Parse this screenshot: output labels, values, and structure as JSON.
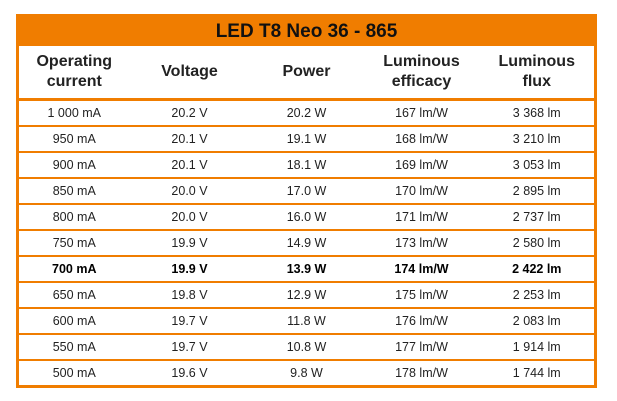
{
  "table": {
    "title": "LED T8 Neo 36 - 865",
    "header": [
      "Operating current",
      "Voltage",
      "Power",
      "Luminous efficacy",
      "Luminous flux"
    ],
    "rows": [
      [
        "1 000 mA",
        "20.2 V",
        "20.2 W",
        "167 lm/W",
        "3 368 lm"
      ],
      [
        "950 mA",
        "20.1 V",
        "19.1 W",
        "168 lm/W",
        "3 210 lm"
      ],
      [
        "900 mA",
        "20.1 V",
        "18.1 W",
        "169 lm/W",
        "3 053 lm"
      ],
      [
        "850 mA",
        "20.0 V",
        "17.0 W",
        "170 lm/W",
        "2 895 lm"
      ],
      [
        "800 mA",
        "20.0 V",
        "16.0 W",
        "171 lm/W",
        "2 737 lm"
      ],
      [
        "750 mA",
        "19.9 V",
        "14.9 W",
        "173 lm/W",
        "2 580 lm"
      ],
      [
        "700 mA",
        "19.9 V",
        "13.9 W",
        "174 lm/W",
        "2 422 lm"
      ],
      [
        "650 mA",
        "19.8 V",
        "12.9 W",
        "175 lm/W",
        "2 253 lm"
      ],
      [
        "600 mA",
        "19.7 V",
        "11.8 W",
        "176 lm/W",
        "2 083 lm"
      ],
      [
        "550 mA",
        "19.7 V",
        "10.8 W",
        "177 lm/W",
        "1 914 lm"
      ],
      [
        "500 mA",
        "19.6 V",
        "9.8 W",
        "178 lm/W",
        "1 744 lm"
      ]
    ],
    "bold_row": 6
  }
}
